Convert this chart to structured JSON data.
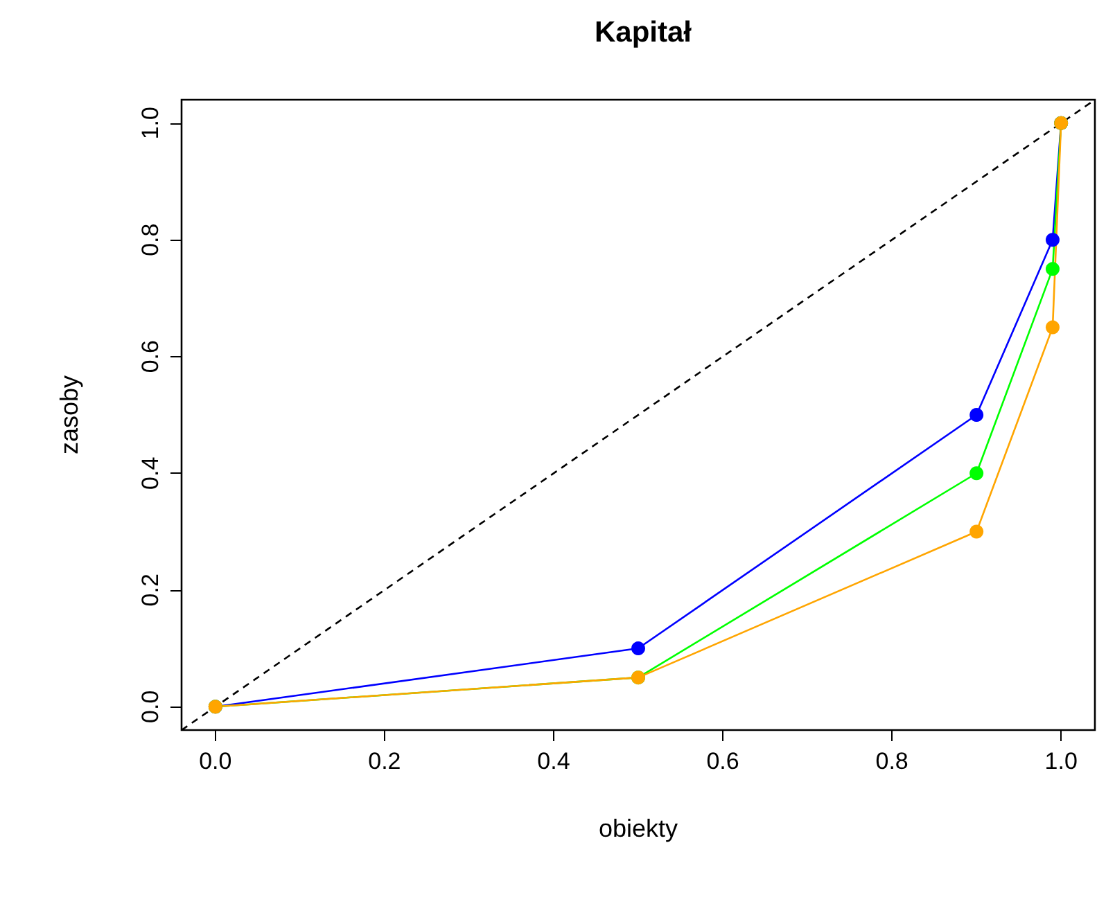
{
  "chart_data": {
    "type": "line",
    "title": "Kapitał",
    "xlabel": "obiekty",
    "ylabel": "zasoby",
    "xlim": [
      -0.04,
      1.04
    ],
    "ylim": [
      -0.04,
      1.04
    ],
    "xticks": [
      {
        "value": 0,
        "label": "0.0"
      },
      {
        "value": 0.2,
        "label": "0.2"
      },
      {
        "value": 0.4,
        "label": "0.4"
      },
      {
        "value": 0.6,
        "label": "0.6"
      },
      {
        "value": 0.8,
        "label": "0.8"
      },
      {
        "value": 1,
        "label": "1.0"
      }
    ],
    "yticks": [
      {
        "value": 0,
        "label": "0.0"
      },
      {
        "value": 0.2,
        "label": "0.2"
      },
      {
        "value": 0.4,
        "label": "0.4"
      },
      {
        "value": 0.6,
        "label": "0.6"
      },
      {
        "value": 0.8,
        "label": "0.8"
      },
      {
        "value": 1,
        "label": "1.0"
      }
    ],
    "grid": false,
    "series": [
      {
        "color": "#000000",
        "x": [
          -0.04,
          1.04
        ],
        "values": [
          -0.04,
          1.04
        ],
        "line_style": "dashed",
        "marker": "none"
      },
      {
        "color": "#0000ff",
        "x": [
          0,
          0.5,
          0.9,
          0.99,
          1
        ],
        "values": [
          0,
          0.1,
          0.5,
          0.8,
          1
        ],
        "line_style": "solid",
        "marker": "circle"
      },
      {
        "color": "#00ff00",
        "x": [
          0,
          0.5,
          0.9,
          0.99,
          1
        ],
        "values": [
          0,
          0.05,
          0.4,
          0.75,
          1
        ],
        "line_style": "solid",
        "marker": "circle"
      },
      {
        "color": "#ffa500",
        "x": [
          0,
          0.5,
          0.9,
          0.99,
          1
        ],
        "values": [
          0,
          0.05,
          0.3,
          0.65,
          1
        ],
        "line_style": "solid",
        "marker": "circle"
      }
    ]
  }
}
